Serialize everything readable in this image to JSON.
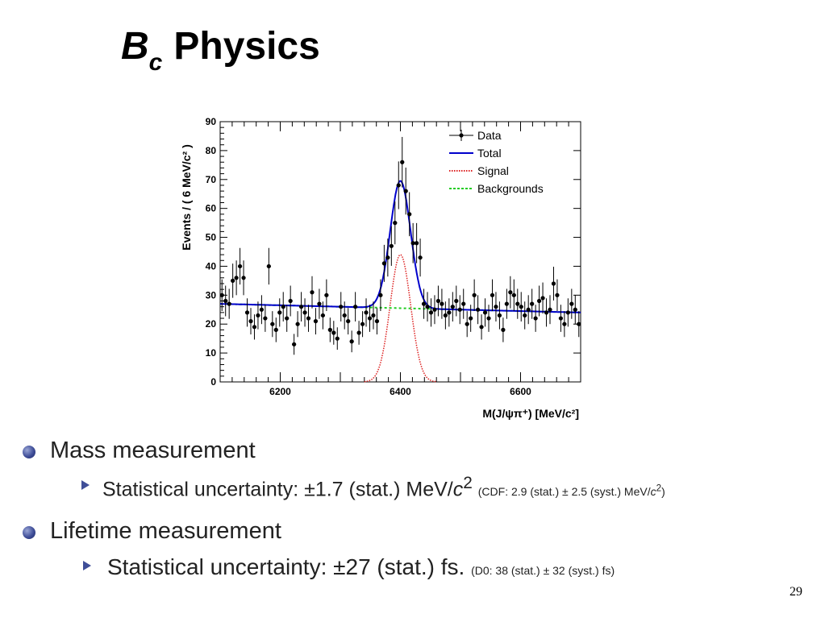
{
  "slide": {
    "title_b": "B",
    "title_sub": "c",
    "title_rest": "Physics",
    "page_number": "29"
  },
  "bullets": [
    {
      "text": "Mass measurement",
      "sub": {
        "main": "Statistical uncertainty: ±1.7 (stat.) MeV/",
        "main_c": "c",
        "main_exp": "2",
        "note": "(CDF: 2.9 (stat.) ± 2.5 (syst.) MeV/",
        "note_c": "c",
        "note_exp": "2",
        "note_close": ")"
      }
    },
    {
      "text": "Lifetime measurement",
      "sub": {
        "main": "Statistical uncertainty: ±27 (stat.) fs.",
        "note": "(D0: 38 (stat.) ± 32 (syst.) fs)"
      }
    }
  ],
  "chart_data": {
    "type": "scatter",
    "ylabel": "Events / ( 6 MeV/c² )",
    "xlabel": "M(J/ψπ⁺) [MeV/c²]",
    "xlim": [
      6100,
      6700
    ],
    "ylim": [
      0,
      90
    ],
    "x_ticks": [
      6200,
      6400,
      6600
    ],
    "y_ticks": [
      0,
      10,
      20,
      30,
      40,
      50,
      60,
      70,
      80,
      90
    ],
    "legend": {
      "position": "top-right",
      "entries": [
        "Data",
        "Total",
        "Signal",
        "Backgrounds"
      ]
    },
    "colors": {
      "data": "#000000",
      "total": "#0000cc",
      "signal": "#dd2222",
      "background": "#22cc22"
    },
    "series": [
      {
        "name": "Data",
        "x": [
          6103,
          6109,
          6115,
          6121,
          6127,
          6133,
          6139,
          6145,
          6151,
          6157,
          6163,
          6169,
          6175,
          6181,
          6187,
          6193,
          6199,
          6205,
          6211,
          6217,
          6223,
          6229,
          6235,
          6241,
          6247,
          6253,
          6259,
          6265,
          6271,
          6277,
          6283,
          6289,
          6295,
          6301,
          6307,
          6313,
          6319,
          6325,
          6331,
          6337,
          6343,
          6349,
          6355,
          6361,
          6367,
          6373,
          6379,
          6385,
          6391,
          6397,
          6403,
          6409,
          6415,
          6421,
          6427,
          6433,
          6439,
          6445,
          6451,
          6457,
          6463,
          6469,
          6475,
          6481,
          6487,
          6493,
          6499,
          6505,
          6511,
          6517,
          6523,
          6529,
          6535,
          6541,
          6547,
          6553,
          6559,
          6565,
          6571,
          6577,
          6583,
          6589,
          6595,
          6601,
          6607,
          6613,
          6619,
          6625,
          6631,
          6637,
          6643,
          6649,
          6655,
          6661,
          6667,
          6673,
          6679,
          6685,
          6691,
          6697
        ],
        "y": [
          30,
          28,
          27,
          35,
          36,
          40,
          36,
          24,
          21,
          19,
          23,
          25,
          22,
          40,
          20,
          18,
          24,
          26,
          22,
          28,
          13,
          20,
          26,
          24,
          22,
          31,
          21,
          27,
          23,
          30,
          18,
          17,
          15,
          26,
          23,
          21,
          14,
          26,
          17,
          20,
          24,
          22,
          23,
          21,
          30,
          41,
          43,
          47,
          55,
          68,
          76,
          66,
          58,
          48,
          48,
          43,
          27,
          26,
          24,
          25,
          28,
          27,
          23,
          24,
          26,
          28,
          25,
          27,
          20,
          22,
          30,
          25,
          19,
          24,
          22,
          30,
          26,
          23,
          18,
          27,
          31,
          30,
          27,
          26,
          23,
          25,
          27,
          22,
          28,
          29,
          24,
          25,
          34,
          30,
          22,
          20,
          24,
          27,
          25,
          20
        ]
      }
    ],
    "fit": {
      "peak_mass": 6400,
      "peak_height": 44,
      "sigma": 17,
      "background_level": 27,
      "background_slope_per_MeV": -0.005
    }
  }
}
